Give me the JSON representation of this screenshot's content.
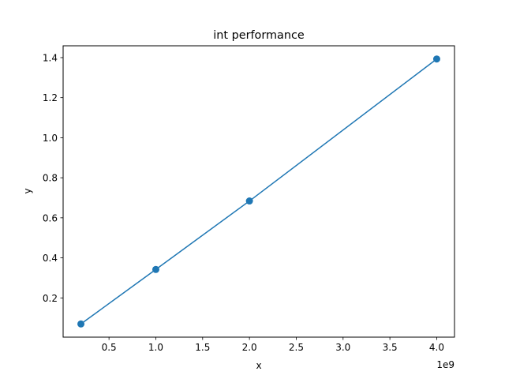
{
  "chart_data": {
    "type": "line",
    "title": "int performance",
    "xlabel": "x",
    "ylabel": "y",
    "x_offset_label": "1e9",
    "series": [
      {
        "x": [
          200000000,
          1000000000,
          2000000000,
          4000000000
        ],
        "y": [
          0.07,
          0.342,
          0.684,
          1.393
        ],
        "color": "#1f77b4",
        "marker": "circle"
      }
    ],
    "xlim": [
      10000000,
      4190000000
    ],
    "ylim": [
      0.004,
      1.459
    ],
    "x_ticks": [
      {
        "value": 500000000,
        "label": "0.5"
      },
      {
        "value": 1000000000,
        "label": "1.0"
      },
      {
        "value": 1500000000,
        "label": "1.5"
      },
      {
        "value": 2000000000,
        "label": "2.0"
      },
      {
        "value": 2500000000,
        "label": "2.5"
      },
      {
        "value": 3000000000,
        "label": "3.0"
      },
      {
        "value": 3500000000,
        "label": "3.5"
      },
      {
        "value": 4000000000,
        "label": "4.0"
      }
    ],
    "y_ticks": [
      {
        "value": 0.2,
        "label": "0.2"
      },
      {
        "value": 0.4,
        "label": "0.4"
      },
      {
        "value": 0.6,
        "label": "0.6"
      },
      {
        "value": 0.8,
        "label": "0.8"
      },
      {
        "value": 1.0,
        "label": "1.0"
      },
      {
        "value": 1.2,
        "label": "1.2"
      },
      {
        "value": 1.4,
        "label": "1.4"
      }
    ],
    "grid": false,
    "legend": "none"
  }
}
